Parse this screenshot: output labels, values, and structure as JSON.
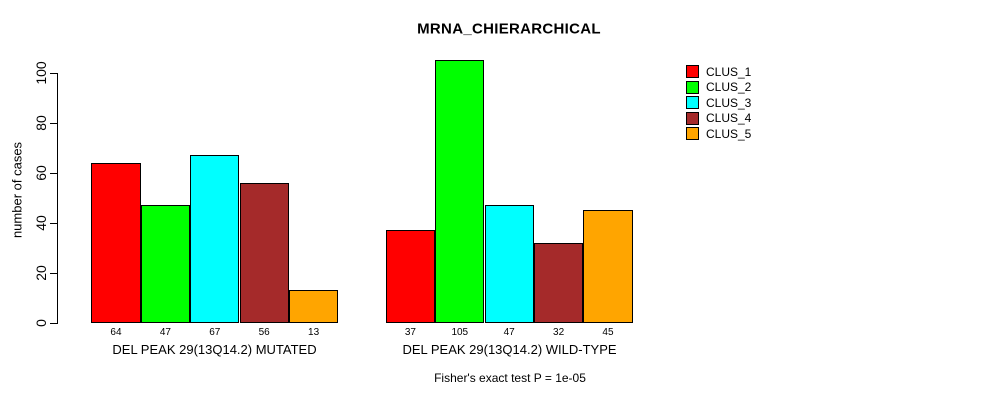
{
  "title": "MRNA_CHIERARCHICAL",
  "colors": {
    "background": "#FFFFFF",
    "bar_border": "#000000",
    "axis": "#000000",
    "text": "#000000"
  },
  "chart_data": {
    "type": "bar",
    "title": "MRNA_CHIERARCHICAL",
    "xlabel": "",
    "ylabel": "number of cases",
    "ylim": [
      0,
      105
    ],
    "yticks": [
      0,
      20,
      40,
      60,
      80,
      100
    ],
    "grid": false,
    "legend_position": "right",
    "bar_value_labels_shown": true,
    "categories": [
      "DEL PEAK 29(13Q14.2) MUTATED",
      "DEL PEAK 29(13Q14.2) WILD-TYPE"
    ],
    "series": [
      {
        "name": "CLUS_1",
        "color": "#FF0000",
        "values": [
          64,
          37
        ]
      },
      {
        "name": "CLUS_2",
        "color": "#00FF00",
        "values": [
          47,
          105
        ]
      },
      {
        "name": "CLUS_3",
        "color": "#00FFFF",
        "values": [
          67,
          47
        ]
      },
      {
        "name": "CLUS_4",
        "color": "#A52A2A",
        "values": [
          56,
          32
        ]
      },
      {
        "name": "CLUS_5",
        "color": "#FFA500",
        "values": [
          13,
          45
        ]
      }
    ],
    "annotation": "Fisher's exact test P = 1e-05"
  }
}
